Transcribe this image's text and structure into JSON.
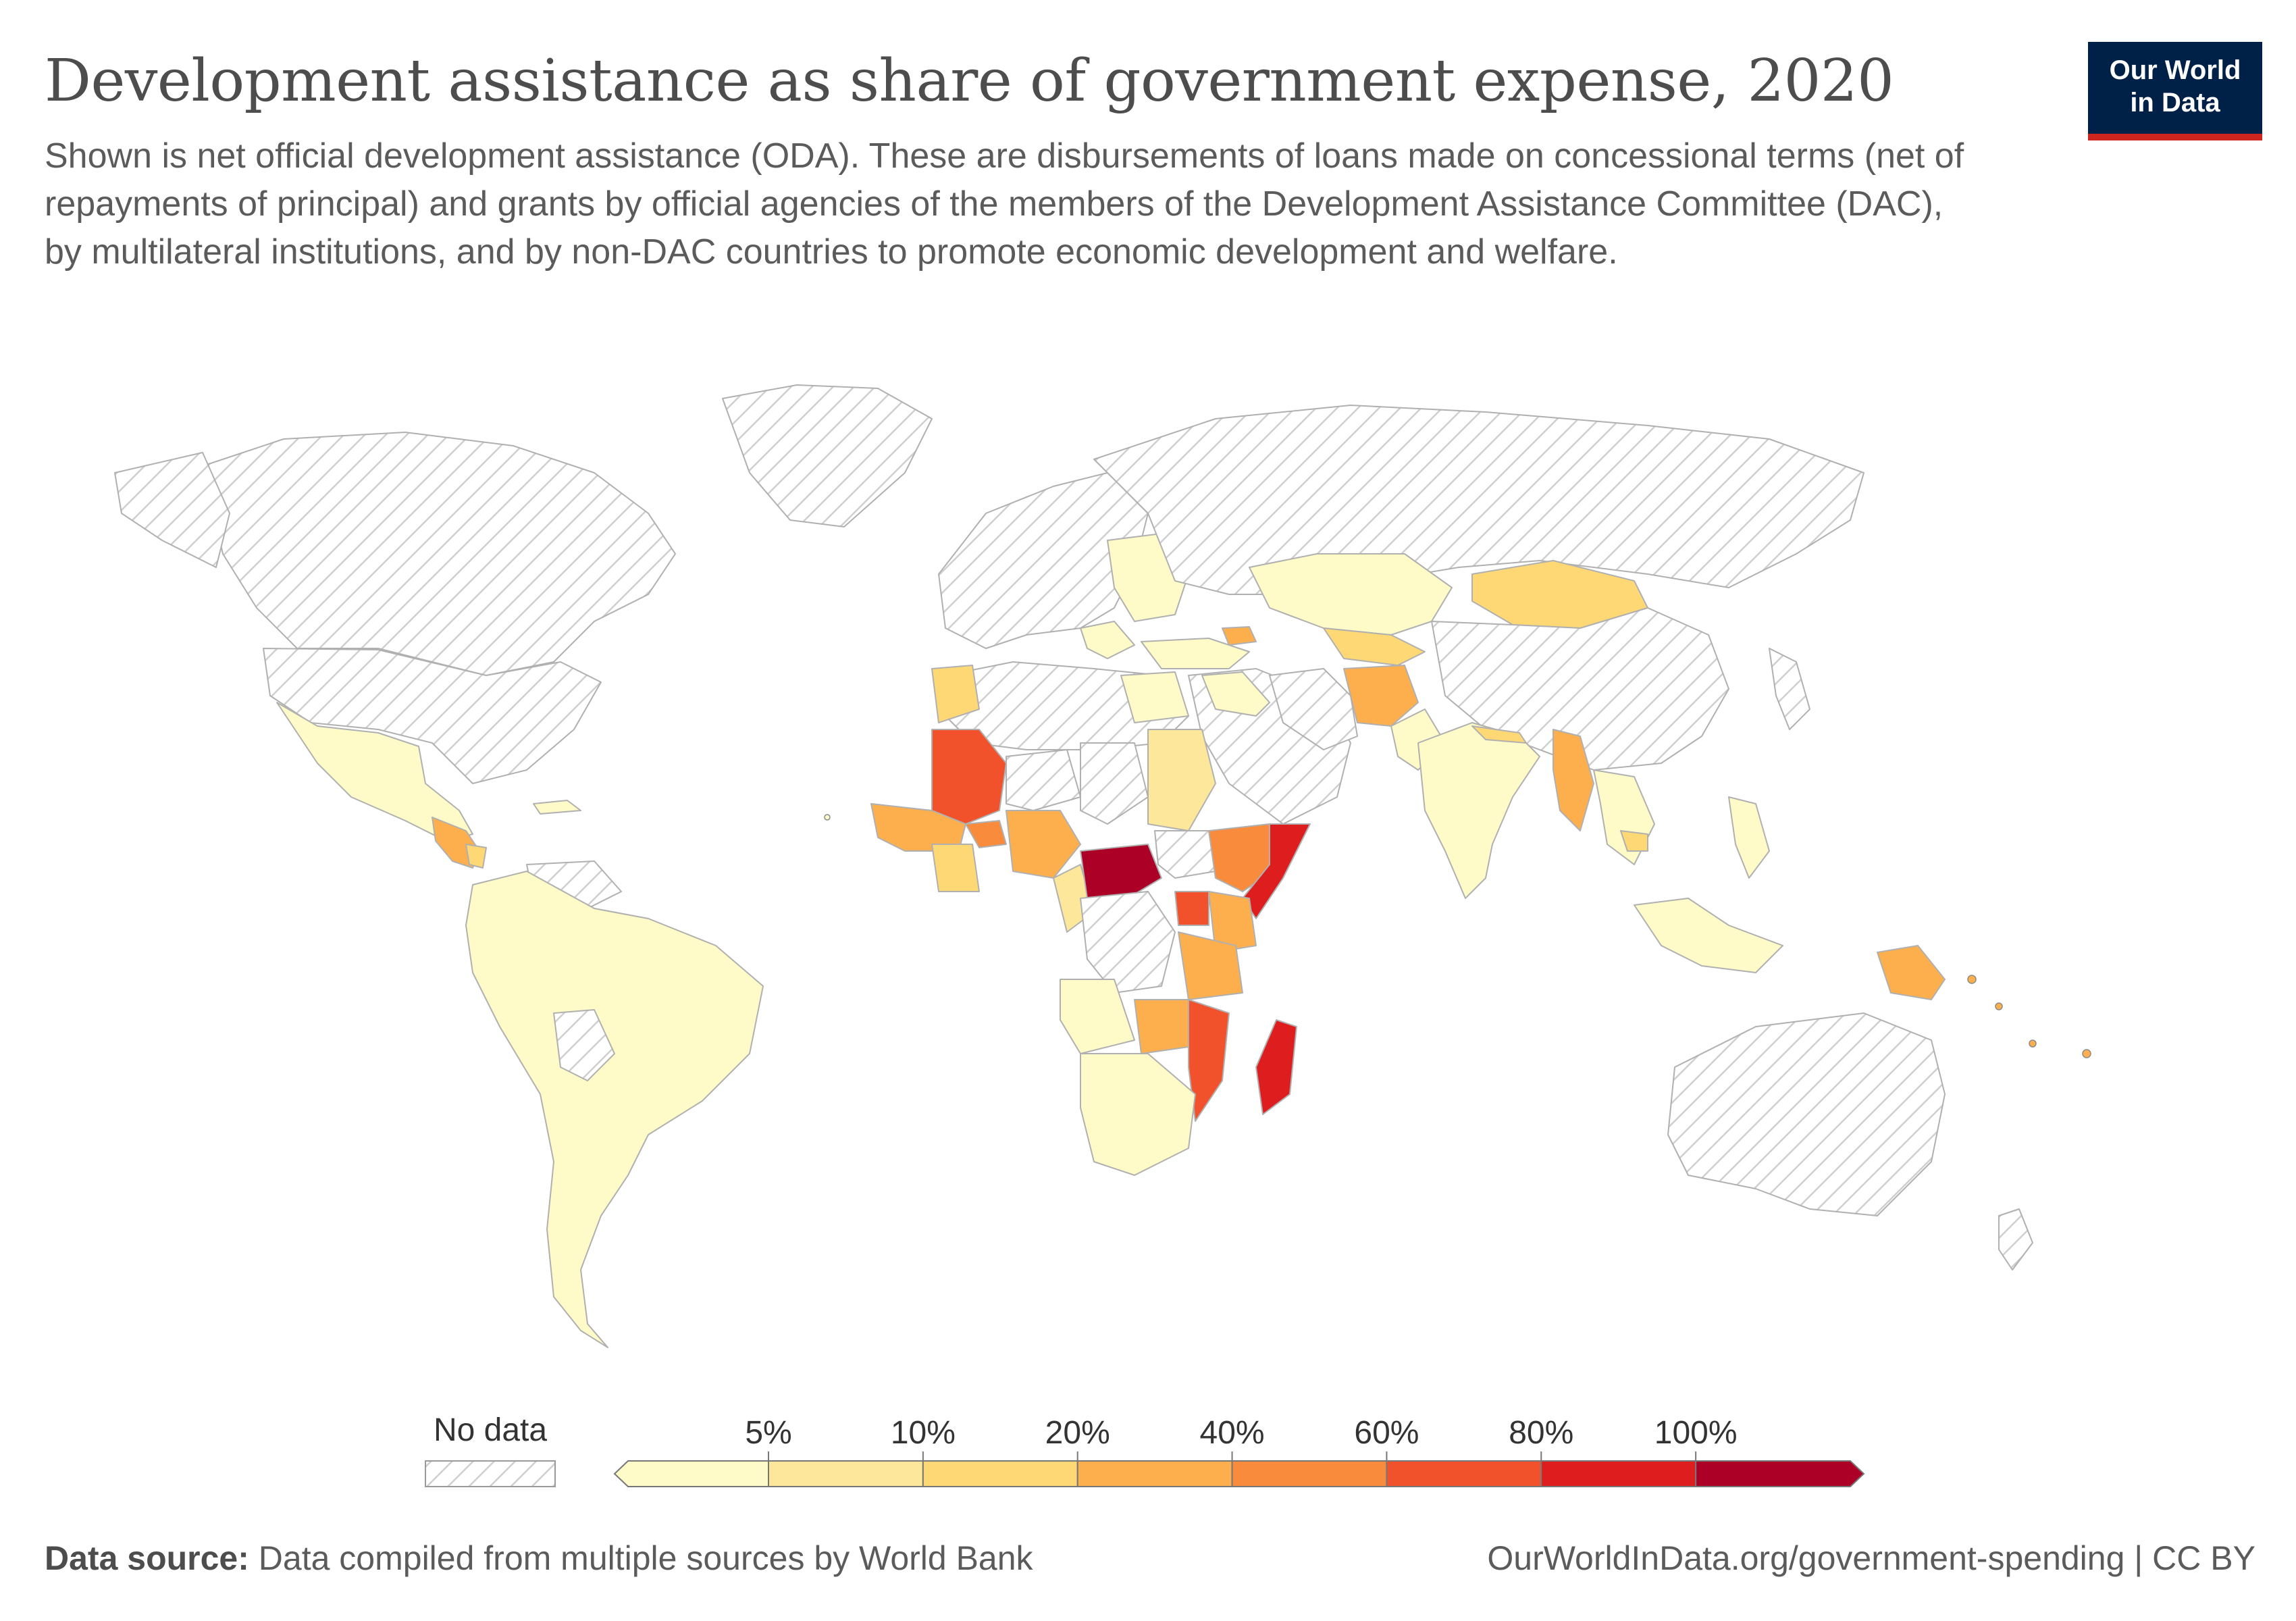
{
  "header": {
    "title": "Development assistance as share of government expense, 2020",
    "subtitle": "Shown is net official development assistance (ODA). These are disbursements of loans made on concessional terms (net of repayments of principal) and grants by official agencies of the members of the Development Assistance Committee (DAC), by multilateral institutions, and by non-DAC countries to promote economic development and welfare."
  },
  "logo": {
    "line1": "Our World",
    "line2": "in Data"
  },
  "legend": {
    "no_data_label": "No data",
    "ticks": [
      "5%",
      "10%",
      "20%",
      "40%",
      "60%",
      "80%",
      "100%"
    ],
    "colors": [
      "#fefbc8",
      "#fde79a",
      "#fdd874",
      "#fcaf4c",
      "#f98b3d",
      "#f2522b",
      "#de1d1f",
      "#ac0026"
    ],
    "no_data_color": "#d8d8d8"
  },
  "chart_data": {
    "type": "choropleth",
    "year": "2020",
    "scale": {
      "bins": [
        0,
        5,
        10,
        20,
        40,
        60,
        80,
        100
      ],
      "unit": "%"
    },
    "regions": {
      "central_african_republic": {
        "bin": "100%+"
      },
      "somalia": {
        "bin": "80-100%"
      },
      "madagascar": {
        "bin": "80-100%"
      },
      "malawi": {
        "bin": "60-80%"
      },
      "mozambique": {
        "bin": "60-80%"
      },
      "mali": {
        "bin": "60-80%"
      },
      "burkina_faso": {
        "bin": "60-80%"
      },
      "dr_congo": {
        "bin": "60-80%"
      },
      "uganda": {
        "bin": "40-60%"
      },
      "ethiopia": {
        "bin": "40-60%"
      },
      "tanzania": {
        "bin": "20-40%"
      },
      "zambia": {
        "bin": "20-40%"
      },
      "afghanistan": {
        "bin": "20-40%"
      },
      "myanmar": {
        "bin": "20-40%"
      },
      "papua_new_guinea": {
        "bin": "20-40%"
      },
      "mongolia": {
        "bin": "10-20%"
      },
      "nepal": {
        "bin": "10-20%"
      },
      "honduras": {
        "bin": "10-20%"
      },
      "nigeria": {
        "bin": "10-20%"
      },
      "ghana": {
        "bin": "10-20%"
      },
      "sudan": {
        "bin": "5-10%"
      },
      "cameroon": {
        "bin": "5-10%"
      },
      "brazil": {
        "bin": "0-5%"
      },
      "india": {
        "bin": "0-5%"
      },
      "mexico": {
        "bin": "0-5%"
      },
      "angola": {
        "bin": "0-5%"
      },
      "south_africa": {
        "bin": "0-5%"
      },
      "kazakhstan": {
        "bin": "0-5%"
      },
      "indonesia": {
        "bin": "0-5%"
      },
      "usa": {
        "bin": "no data"
      },
      "canada": {
        "bin": "no data"
      },
      "russia": {
        "bin": "no data"
      },
      "china": {
        "bin": "no data"
      },
      "australia": {
        "bin": "no data"
      },
      "algeria": {
        "bin": "no data"
      },
      "saudi_arabia": {
        "bin": "no data"
      }
    }
  },
  "footer": {
    "source_label": "Data source:",
    "source_text": "Data compiled from multiple sources by World Bank",
    "url": "OurWorldInData.org/government-spending | CC BY"
  }
}
